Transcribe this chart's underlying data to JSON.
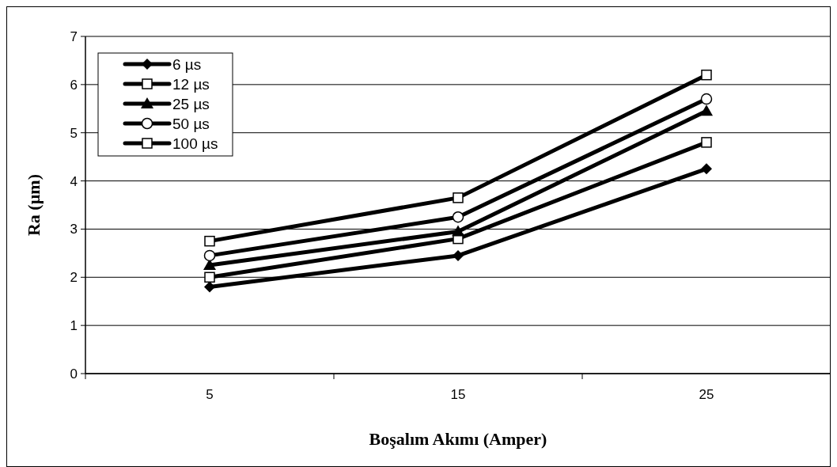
{
  "chart_data": {
    "type": "line",
    "xlabel": "Boşalım Akımı (Amper)",
    "ylabel": "Ra (µm)",
    "categories": [
      "5",
      "15",
      "25"
    ],
    "series": [
      {
        "name": "6 µs",
        "color": "#000000",
        "marker": "diamond",
        "values": [
          1.8,
          2.45,
          4.25
        ]
      },
      {
        "name": "12 µs",
        "color": "#000000",
        "marker": "square",
        "values": [
          2.0,
          2.8,
          4.8
        ]
      },
      {
        "name": "25 µs",
        "color": "#000000",
        "marker": "triangle",
        "values": [
          2.25,
          2.95,
          5.45
        ]
      },
      {
        "name": "50 µs",
        "color": "#000000",
        "marker": "circle",
        "values": [
          2.45,
          3.25,
          5.7
        ]
      },
      {
        "name": "100 µs",
        "color": "#000000",
        "marker": "square",
        "values": [
          2.75,
          3.65,
          6.2
        ]
      }
    ],
    "ylim": [
      0,
      7
    ],
    "yticks": [
      0,
      1,
      2,
      3,
      4,
      5,
      6,
      7
    ],
    "grid": "y",
    "legend": "top left",
    "line_style": "solid"
  }
}
